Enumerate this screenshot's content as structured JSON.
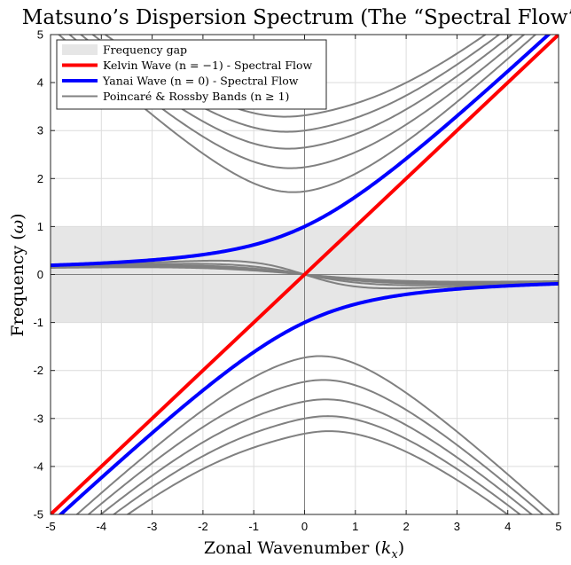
{
  "chart_data": {
    "type": "line",
    "title": "Matsuno’s Dispersion Spectrum (The “Spectral Flow”)",
    "xlabel": "Zonal Wavenumber (k_x)",
    "ylabel": "Frequency (ω)",
    "xlim": [
      -5,
      5
    ],
    "ylim": [
      -5,
      5
    ],
    "x_ticks": [
      "-5",
      "-4",
      "-3",
      "-2",
      "-1",
      "0",
      "1",
      "2",
      "3",
      "4",
      "5"
    ],
    "y_ticks": [
      "-5",
      "-4",
      "-3",
      "-2",
      "-1",
      "0",
      "1",
      "2",
      "3",
      "4",
      "5"
    ],
    "grid": true,
    "legend_position": "top-left",
    "gap": {
      "name": "Frequency gap",
      "ymin": -1,
      "ymax": 1,
      "color": "#e6e6e6"
    },
    "colors": {
      "kelvin": "#ff0000",
      "yanai": "#0000ff",
      "bands": "#808080",
      "gap": "#e6e6e6"
    },
    "series": [
      {
        "name": "Kelvin Wave (n = −1) - Spectral Flow",
        "kind": "kelvin",
        "x": [
          -5,
          5
        ],
        "y": [
          -5,
          5
        ]
      },
      {
        "name": "Yanai Wave (n = 0) - Spectral Flow",
        "kind": "yanai",
        "x_range": [
          -5,
          5
        ],
        "branches": [
          {
            "x": [
              -5,
              -4,
              -3,
              -2,
              -1,
              0,
              1,
              2,
              3,
              4,
              5
            ],
            "y": [
              0.19,
              0.24,
              0.3,
              0.41,
              0.62,
              1.0,
              1.62,
              2.41,
              3.3,
              4.24,
              5.19
            ]
          },
          {
            "x": [
              -5,
              -4,
              -3,
              -2,
              -1,
              0,
              1,
              2,
              3,
              4,
              5
            ],
            "y": [
              -5.19,
              -4.24,
              -3.3,
              -2.41,
              -1.62,
              -1.0,
              -0.62,
              -0.41,
              -0.3,
              -0.24,
              -0.19
            ]
          }
        ]
      },
      {
        "name": "Poincaré & Rossby Bands (n ≥ 1)",
        "kind": "bands",
        "n_values": [
          1,
          2,
          3,
          4,
          5
        ],
        "peak_frequency_n": {
          "1": 1.73,
          "2": 2.24,
          "3": 2.65,
          "4": 3.0,
          "5": 3.32
        }
      }
    ],
    "legend": [
      {
        "label": "Frequency gap",
        "kind": "gap"
      },
      {
        "label": "Kelvin Wave (n = −1) - Spectral Flow",
        "kind": "kelvin"
      },
      {
        "label": "Yanai Wave (n = 0) - Spectral Flow",
        "kind": "yanai"
      },
      {
        "label": "Poincaré & Rossby Bands (n ≥ 1)",
        "kind": "bands"
      }
    ]
  }
}
